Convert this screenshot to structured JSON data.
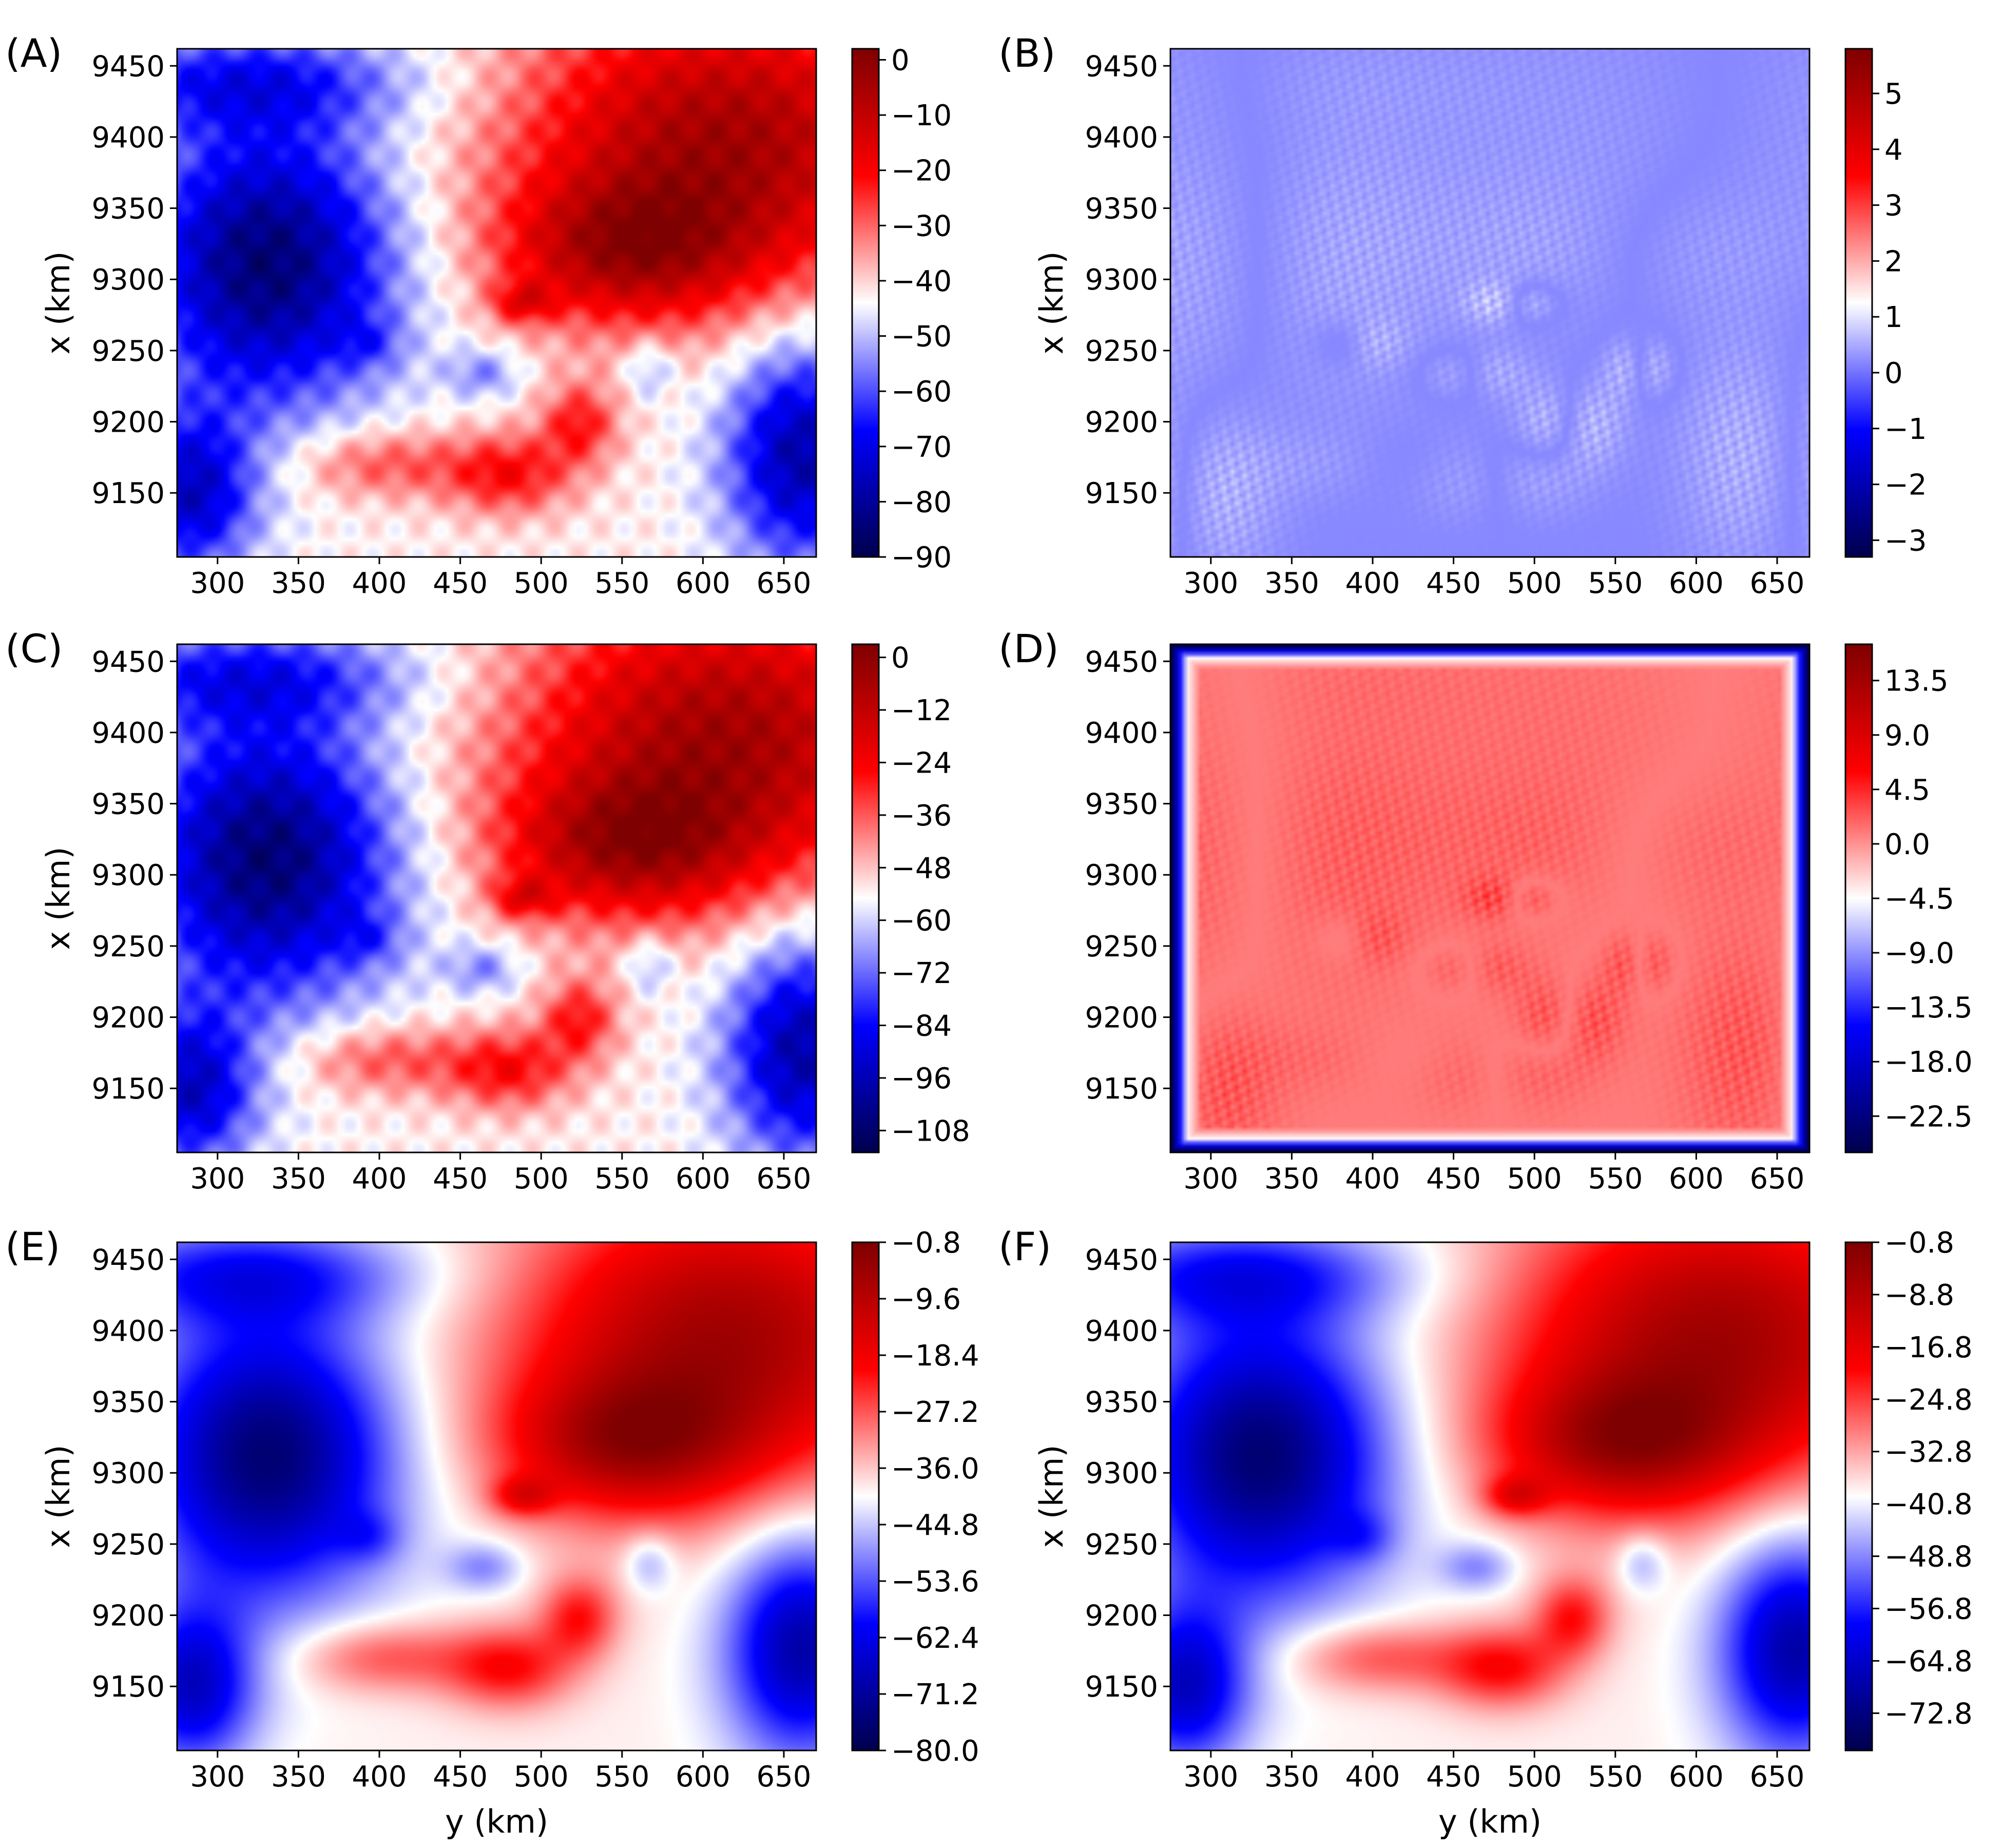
{
  "chart_data": [
    {
      "panel": "(A)",
      "type": "heatmap",
      "xlabel": "",
      "ylabel": "x (km)",
      "xlim": [
        275,
        670
      ],
      "ylim": [
        9105,
        9462
      ],
      "xticks": [
        300,
        350,
        400,
        450,
        500,
        550,
        600,
        650
      ],
      "yticks": [
        9150,
        9200,
        9250,
        9300,
        9350,
        9400,
        9450
      ],
      "colorbar": {
        "min": -90,
        "max": 2,
        "ticks": [
          "0",
          "−10",
          "−20",
          "−30",
          "−40",
          "−50",
          "−60",
          "−70",
          "−80",
          "−90"
        ],
        "tick_values": [
          0,
          -10,
          -20,
          -30,
          -40,
          -50,
          -60,
          -70,
          -80,
          -90
        ]
      },
      "colormap": "seismic",
      "field": "anomaly"
    },
    {
      "panel": "(B)",
      "type": "heatmap",
      "xlabel": "",
      "ylabel": "x (km)",
      "xlim": [
        275,
        670
      ],
      "ylim": [
        9105,
        9462
      ],
      "xticks": [
        300,
        350,
        400,
        450,
        500,
        550,
        600,
        650
      ],
      "yticks": [
        9150,
        9200,
        9250,
        9300,
        9350,
        9400,
        9450
      ],
      "colorbar": {
        "min": -3.3,
        "max": 5.8,
        "ticks": [
          "5",
          "4",
          "3",
          "2",
          "1",
          "0",
          "−1",
          "−2",
          "−3"
        ],
        "tick_values": [
          5,
          4,
          3,
          2,
          1,
          0,
          -1,
          -2,
          -3
        ]
      },
      "colormap": "seismic",
      "field": "residual"
    },
    {
      "panel": "(C)",
      "type": "heatmap",
      "xlabel": "",
      "ylabel": "x (km)",
      "xlim": [
        275,
        670
      ],
      "ylim": [
        9105,
        9462
      ],
      "xticks": [
        300,
        350,
        400,
        450,
        500,
        550,
        600,
        650
      ],
      "yticks": [
        9150,
        9200,
        9250,
        9300,
        9350,
        9400,
        9450
      ],
      "colorbar": {
        "min": -113,
        "max": 3,
        "ticks": [
          "0",
          "−12",
          "−24",
          "−36",
          "−48",
          "−60",
          "−72",
          "−84",
          "−96",
          "−108"
        ],
        "tick_values": [
          0,
          -12,
          -24,
          -36,
          -48,
          -60,
          -72,
          -84,
          -96,
          -108
        ]
      },
      "colormap": "seismic",
      "field": "anomaly"
    },
    {
      "panel": "(D)",
      "type": "heatmap",
      "xlabel": "",
      "ylabel": "",
      "xlim": [
        275,
        670
      ],
      "ylim": [
        9105,
        9462
      ],
      "xticks": [
        300,
        350,
        400,
        450,
        500,
        550,
        600,
        650
      ],
      "yticks": [
        9150,
        9200,
        9250,
        9300,
        9350,
        9400,
        9450
      ],
      "colorbar": {
        "min": -25.5,
        "max": 16.5,
        "ticks": [
          "13.5",
          "9.0",
          "4.5",
          "0.0",
          "−4.5",
          "−9.0",
          "−13.5",
          "−18.0",
          "−22.5"
        ],
        "tick_values": [
          13.5,
          9.0,
          4.5,
          0.0,
          -4.5,
          -9.0,
          -13.5,
          -18.0,
          -22.5
        ]
      },
      "colormap": "seismic",
      "field": "residual-border"
    },
    {
      "panel": "(E)",
      "type": "heatmap",
      "xlabel": "y (km)",
      "ylabel": "x (km)",
      "xlim": [
        275,
        670
      ],
      "ylim": [
        9105,
        9462
      ],
      "xticks": [
        300,
        350,
        400,
        450,
        500,
        550,
        600,
        650
      ],
      "yticks": [
        9150,
        9200,
        9250,
        9300,
        9350,
        9400,
        9450
      ],
      "colorbar": {
        "min": -80.0,
        "max": -0.8,
        "ticks": [
          "−0.8",
          "−9.6",
          "−18.4",
          "−27.2",
          "−36.0",
          "−44.8",
          "−53.6",
          "−62.4",
          "−71.2",
          "−80.0"
        ],
        "tick_values": [
          -0.8,
          -9.6,
          -18.4,
          -27.2,
          -36.0,
          -44.8,
          -53.6,
          -62.4,
          -71.2,
          -80.0
        ]
      },
      "colormap": "seismic",
      "field": "smooth"
    },
    {
      "panel": "(F)",
      "type": "heatmap",
      "xlabel": "y (km)",
      "ylabel": "x (km)",
      "xlim": [
        275,
        670
      ],
      "ylim": [
        9105,
        9462
      ],
      "xticks": [
        300,
        350,
        400,
        450,
        500,
        550,
        600,
        650
      ],
      "yticks": [
        9150,
        9200,
        9250,
        9300,
        9350,
        9400,
        9450
      ],
      "colorbar": {
        "min": -78.5,
        "max": -0.8,
        "ticks": [
          "−0.8",
          "−8.8",
          "−16.8",
          "−24.8",
          "−32.8",
          "−40.8",
          "−48.8",
          "−56.8",
          "−64.8",
          "−72.8"
        ],
        "tick_values": [
          -0.8,
          -8.8,
          -16.8,
          -24.8,
          -32.8,
          -40.8,
          -48.8,
          -56.8,
          -64.8,
          -72.8
        ]
      },
      "colormap": "seismic",
      "field": "smooth"
    }
  ]
}
